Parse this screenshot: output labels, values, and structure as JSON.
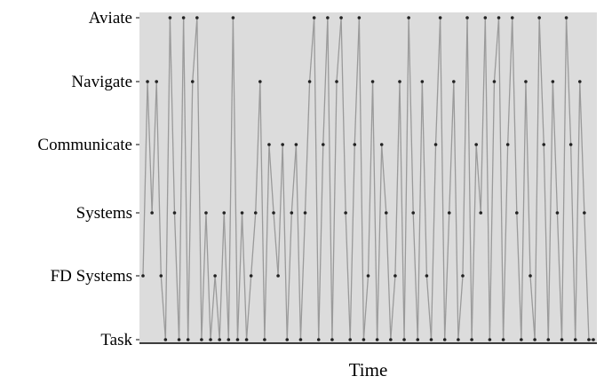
{
  "chart_data": {
    "type": "line",
    "xlabel": "Time",
    "ylabel": "",
    "categories": [
      "Aviate",
      "Navigate",
      "Communicate",
      "Systems",
      "FD Systems",
      "Task"
    ],
    "grid": false,
    "colors": {
      "plot_background": "#dcdcdc",
      "line": "#9a9a9a",
      "marker": "#222222",
      "axis": "#000000"
    },
    "xlim": [
      0,
      100
    ],
    "series": [
      {
        "x": [
          0,
          1,
          2,
          3,
          4,
          5,
          6,
          7,
          8,
          9,
          10,
          11,
          12,
          13,
          14,
          15,
          16,
          17,
          18,
          19,
          20,
          21,
          22,
          23,
          24,
          25,
          26,
          27,
          28,
          29,
          30,
          31,
          32,
          33,
          34,
          35,
          36,
          37,
          38,
          39,
          40,
          41,
          42,
          43,
          44,
          45,
          46,
          47,
          48,
          49,
          50,
          51,
          52,
          53,
          54,
          55,
          56,
          57,
          58,
          59,
          60,
          61,
          62,
          63,
          64,
          65,
          66,
          67,
          68,
          69,
          70,
          71,
          72,
          73,
          74,
          75,
          76,
          77,
          78,
          79,
          80,
          81,
          82,
          83,
          84,
          85,
          86,
          87,
          88,
          89,
          90,
          91,
          92,
          93,
          94,
          95,
          96,
          97,
          98,
          99,
          100
        ],
        "y": [
          "FD Systems",
          "Navigate",
          "Systems",
          "Navigate",
          "FD Systems",
          "Task",
          "Aviate",
          "Systems",
          "Task",
          "Aviate",
          "Task",
          "Navigate",
          "Aviate",
          "Task",
          "Systems",
          "Task",
          "FD Systems",
          "Task",
          "Systems",
          "Task",
          "Aviate",
          "Task",
          "Systems",
          "Task",
          "FD Systems",
          "Systems",
          "Navigate",
          "Task",
          "Communicate",
          "Systems",
          "FD Systems",
          "Communicate",
          "Task",
          "Systems",
          "Communicate",
          "Task",
          "Systems",
          "Navigate",
          "Aviate",
          "Task",
          "Communicate",
          "Aviate",
          "Task",
          "Navigate",
          "Aviate",
          "Systems",
          "Task",
          "Communicate",
          "Aviate",
          "Task",
          "FD Systems",
          "Navigate",
          "Task",
          "Communicate",
          "Systems",
          "Task",
          "FD Systems",
          "Navigate",
          "Task",
          "Aviate",
          "Systems",
          "Task",
          "Navigate",
          "FD Systems",
          "Task",
          "Communicate",
          "Aviate",
          "Task",
          "Systems",
          "Navigate",
          "Task",
          "FD Systems",
          "Aviate",
          "Task",
          "Communicate",
          "Systems",
          "Aviate",
          "Task",
          "Navigate",
          "Aviate",
          "Task",
          "Communicate",
          "Aviate",
          "Systems",
          "Task",
          "Navigate",
          "FD Systems",
          "Task",
          "Aviate",
          "Communicate",
          "Task",
          "Navigate",
          "Systems",
          "Task",
          "Aviate",
          "Communicate",
          "Task",
          "Navigate",
          "Systems",
          "Task",
          "Task"
        ]
      }
    ]
  }
}
